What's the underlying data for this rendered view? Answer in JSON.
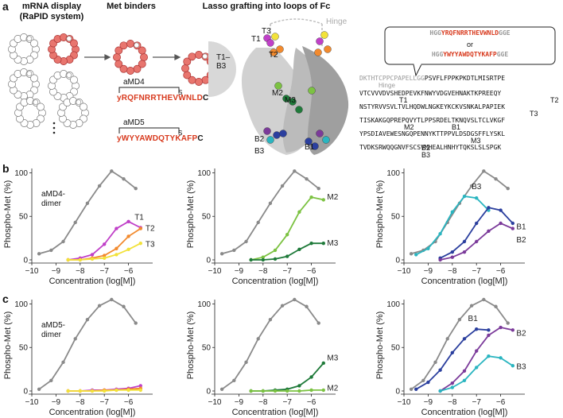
{
  "panel_a": {
    "letter": "a",
    "step1_title": "mRNA display (RaPID system)",
    "step1_line1": "mRNA display",
    "step1_line2": "(RaPID system)",
    "step2_title": "Met binders",
    "step3_title": "Lasso grafting into loops of Fc",
    "peptide1_name": "aMD4",
    "peptide1_seq": "yRQFNRRTHEVWNLDC",
    "peptide1_first": "y",
    "peptide1_body": "RQFNRRTHEVWNLD",
    "peptide1_last": "C",
    "peptide2_name": "aMD5",
    "peptide2_seq": "yWYYAWDQTYKAFPC",
    "peptide2_first": "y",
    "peptide2_body": "WYYAWDQTYKAFP",
    "peptide2_last": "C",
    "sulfur": "S",
    "fc_label": "T1–B3",
    "fc_label_l1": "T1–",
    "fc_label_l2": "B3",
    "hinge": "Hinge",
    "structure_sites": [
      "T1",
      "T3",
      "T2",
      "M2",
      "M3",
      "B2",
      "B3",
      "B1"
    ],
    "insert_box": {
      "line1_pre": "HGG",
      "line1_pep": "YRQFNRRTHEVWNLD",
      "line1_post": "GGE",
      "or": "or",
      "line2_pre": "HGG",
      "line2_pep": "YWYYAWDQTYKAFP",
      "line2_post": "GGE"
    },
    "fc_sequence": {
      "line1_grey": "DKTHTCPPCPAPELLGG",
      "line1_black": "PSVFLFPPKPKDTLMISRTPE",
      "line2": "VTCVVVDVSHEDPEVKFNWYVDGVEHNAKTKPREEQY",
      "line3": "NSTYRVVSVLTVLHQDWLNGKEYKCKVSNKALPAPIEK",
      "line4": "TISKAKGQPREPQVYTLPPSRDELTKNQVSLTCLVKGF",
      "line5": "YPSDIAVEWESNGQPENNYKTTPPVLDSDGSFFLYSKL",
      "line6": "TVDKSRWQQGNVFSCSVMHEALHNHYTQKSLSLSPGK"
    },
    "seq_site_labels": [
      "Hinge",
      "T1",
      "T2",
      "T3",
      "M2",
      "B1",
      "M3",
      "B2",
      "B3"
    ]
  },
  "panel_b": {
    "letter": "b",
    "inset_label": "aMD4-dimer",
    "inset_l1": "aMD4-",
    "inset_l2": "dimer"
  },
  "panel_c": {
    "letter": "c",
    "inset_label": "aMD5-dimer",
    "inset_l1": "aMD5-",
    "inset_l2": "dimer"
  },
  "axes": {
    "ylabel": "Phospho-Met (%)",
    "xlabel": "Concentration (log[M])",
    "xticks": [
      "−10",
      "−9",
      "−8",
      "−7",
      "−6"
    ],
    "yticks": [
      "0",
      "50",
      "100"
    ]
  },
  "colors": {
    "grey": "#8a8a8a",
    "T1": "#c040c8",
    "T2": "#f28a2e",
    "T3": "#f2e23a",
    "M2": "#7cc242",
    "M3": "#1f7a3a",
    "B1": "#2b3f9e",
    "B2": "#7b3a9a",
    "B3": "#2ab5c0",
    "peptide_red": "#d83a1e"
  },
  "chart_data": [
    {
      "type": "line",
      "panel": "b-left",
      "xlim": [
        -10,
        -5
      ],
      "ylim": [
        0,
        105
      ],
      "xlabel": "Concentration (log[M])",
      "ylabel": "Phospho-Met (%)",
      "series": [
        {
          "color": "#8a8a8a",
          "x": [
            -9.7,
            -9.2,
            -8.7,
            -8.2,
            -7.7,
            -7.2,
            -6.7,
            -6.2,
            -5.7
          ],
          "y": [
            7,
            11,
            21,
            43,
            65,
            85,
            102,
            93,
            82
          ]
        },
        {
          "name": "T1",
          "color": "#c040c8",
          "x": [
            -8.5,
            -8.0,
            -7.5,
            -7.0,
            -6.5,
            -6.0,
            -5.5
          ],
          "y": [
            0,
            2,
            6,
            18,
            36,
            44,
            37
          ]
        },
        {
          "name": "T2",
          "color": "#f28a2e",
          "x": [
            -8.5,
            -8.0,
            -7.5,
            -7.0,
            -6.5,
            -6.0,
            -5.5
          ],
          "y": [
            0,
            0,
            2,
            5,
            13,
            27,
            36
          ]
        },
        {
          "name": "T3",
          "color": "#f2e23a",
          "x": [
            -8.5,
            -8.0,
            -7.5,
            -7.0,
            -6.5,
            -6.0,
            -5.5
          ],
          "y": [
            0,
            0,
            1,
            2,
            6,
            12,
            19
          ]
        }
      ]
    },
    {
      "type": "line",
      "panel": "b-middle",
      "xlim": [
        -10,
        -5
      ],
      "ylim": [
        0,
        105
      ],
      "series": [
        {
          "color": "#8a8a8a",
          "x": [
            -9.7,
            -9.2,
            -8.7,
            -8.2,
            -7.7,
            -7.2,
            -6.7,
            -6.2,
            -5.7
          ],
          "y": [
            7,
            11,
            21,
            43,
            65,
            85,
            102,
            93,
            82
          ]
        },
        {
          "name": "M2",
          "color": "#7cc242",
          "x": [
            -8.5,
            -8.0,
            -7.5,
            -7.0,
            -6.5,
            -6.0,
            -5.5
          ],
          "y": [
            0,
            3,
            11,
            29,
            55,
            72,
            69
          ]
        },
        {
          "name": "M3",
          "color": "#1f7a3a",
          "x": [
            -8.5,
            -8.0,
            -7.5,
            -7.0,
            -6.5,
            -6.0,
            -5.5
          ],
          "y": [
            0,
            0,
            1,
            4,
            12,
            19,
            19
          ]
        }
      ]
    },
    {
      "type": "line",
      "panel": "b-right",
      "xlim": [
        -10,
        -5
      ],
      "ylim": [
        0,
        105
      ],
      "series": [
        {
          "color": "#8a8a8a",
          "x": [
            -9.7,
            -9.2,
            -8.7,
            -8.2,
            -7.7,
            -7.2,
            -6.7,
            -6.2,
            -5.7
          ],
          "y": [
            7,
            11,
            21,
            43,
            65,
            85,
            102,
            93,
            82
          ]
        },
        {
          "name": "B3",
          "color": "#2ab5c0",
          "x": [
            -9.5,
            -9.0,
            -8.5,
            -8.0,
            -7.5,
            -7.0,
            -6.5
          ],
          "y": [
            6,
            13,
            30,
            55,
            73,
            71,
            57
          ]
        },
        {
          "name": "B1",
          "color": "#2b3f9e",
          "x": [
            -8.5,
            -8.0,
            -7.5,
            -7.0,
            -6.5,
            -6.0,
            -5.5
          ],
          "y": [
            2,
            9,
            21,
            42,
            60,
            57,
            42
          ]
        },
        {
          "name": "B2",
          "color": "#7b3a9a",
          "x": [
            -8.5,
            -8.0,
            -7.5,
            -7.0,
            -6.5,
            -6.0,
            -5.5
          ],
          "y": [
            0,
            3,
            9,
            21,
            33,
            42,
            36
          ]
        }
      ]
    },
    {
      "type": "line",
      "panel": "c-left",
      "xlim": [
        -10,
        -5
      ],
      "ylim": [
        0,
        105
      ],
      "series": [
        {
          "color": "#8a8a8a",
          "x": [
            -9.7,
            -9.2,
            -8.7,
            -8.2,
            -7.7,
            -7.2,
            -6.7,
            -6.2,
            -5.7
          ],
          "y": [
            2,
            12,
            33,
            60,
            82,
            98,
            105,
            97,
            78
          ]
        },
        {
          "name": "T1",
          "color": "#c040c8",
          "x": [
            -8.5,
            -8.0,
            -7.5,
            -7.0,
            -6.5,
            -6.0,
            -5.5
          ],
          "y": [
            0,
            0,
            1,
            1,
            2,
            3,
            6
          ]
        },
        {
          "name": "T2",
          "color": "#f28a2e",
          "x": [
            -8.5,
            -8.0,
            -7.5,
            -7.0,
            -6.5,
            -6.0,
            -5.5
          ],
          "y": [
            0,
            0,
            0,
            1,
            1,
            2,
            3
          ]
        },
        {
          "name": "T3",
          "color": "#f2e23a",
          "x": [
            -8.5,
            -8.0,
            -7.5,
            -7.0,
            -6.5,
            -6.0,
            -5.5
          ],
          "y": [
            0,
            0,
            0,
            0,
            1,
            1,
            1
          ]
        }
      ]
    },
    {
      "type": "line",
      "panel": "c-middle",
      "xlim": [
        -10,
        -5
      ],
      "ylim": [
        0,
        105
      ],
      "series": [
        {
          "color": "#8a8a8a",
          "x": [
            -9.7,
            -9.2,
            -8.7,
            -8.2,
            -7.7,
            -7.2,
            -6.7,
            -6.2,
            -5.7
          ],
          "y": [
            2,
            12,
            33,
            60,
            82,
            98,
            105,
            97,
            78
          ]
        },
        {
          "name": "M3",
          "color": "#1f7a3a",
          "x": [
            -8.5,
            -8.0,
            -7.5,
            -7.0,
            -6.5,
            -6.0,
            -5.5
          ],
          "y": [
            0,
            0,
            1,
            2,
            6,
            16,
            32
          ]
        },
        {
          "name": "M2",
          "color": "#7cc242",
          "x": [
            -8.5,
            -8.0,
            -7.5,
            -7.0,
            -6.5,
            -6.0,
            -5.5
          ],
          "y": [
            0,
            0,
            0,
            0,
            0,
            1,
            1
          ]
        }
      ]
    },
    {
      "type": "line",
      "panel": "c-right",
      "xlim": [
        -10,
        -5
      ],
      "ylim": [
        0,
        105
      ],
      "series": [
        {
          "color": "#8a8a8a",
          "x": [
            -9.7,
            -9.2,
            -8.7,
            -8.2,
            -7.7,
            -7.2,
            -6.7,
            -6.2,
            -5.7
          ],
          "y": [
            2,
            12,
            33,
            60,
            82,
            98,
            105,
            97,
            78
          ]
        },
        {
          "name": "B1",
          "color": "#2b3f9e",
          "x": [
            -9.5,
            -9.0,
            -8.5,
            -8.0,
            -7.5,
            -7.0,
            -6.5
          ],
          "y": [
            2,
            10,
            24,
            44,
            60,
            71,
            70
          ]
        },
        {
          "name": "B2",
          "color": "#7b3a9a",
          "x": [
            -8.5,
            -8.0,
            -7.5,
            -7.0,
            -6.5,
            -6.0,
            -5.5
          ],
          "y": [
            0,
            9,
            23,
            46,
            64,
            73,
            70
          ]
        },
        {
          "name": "B3",
          "color": "#2ab5c0",
          "x": [
            -8.5,
            -8.0,
            -7.5,
            -7.0,
            -6.5,
            -6.0,
            -5.5
          ],
          "y": [
            0,
            4,
            12,
            27,
            40,
            38,
            29
          ]
        }
      ]
    }
  ]
}
